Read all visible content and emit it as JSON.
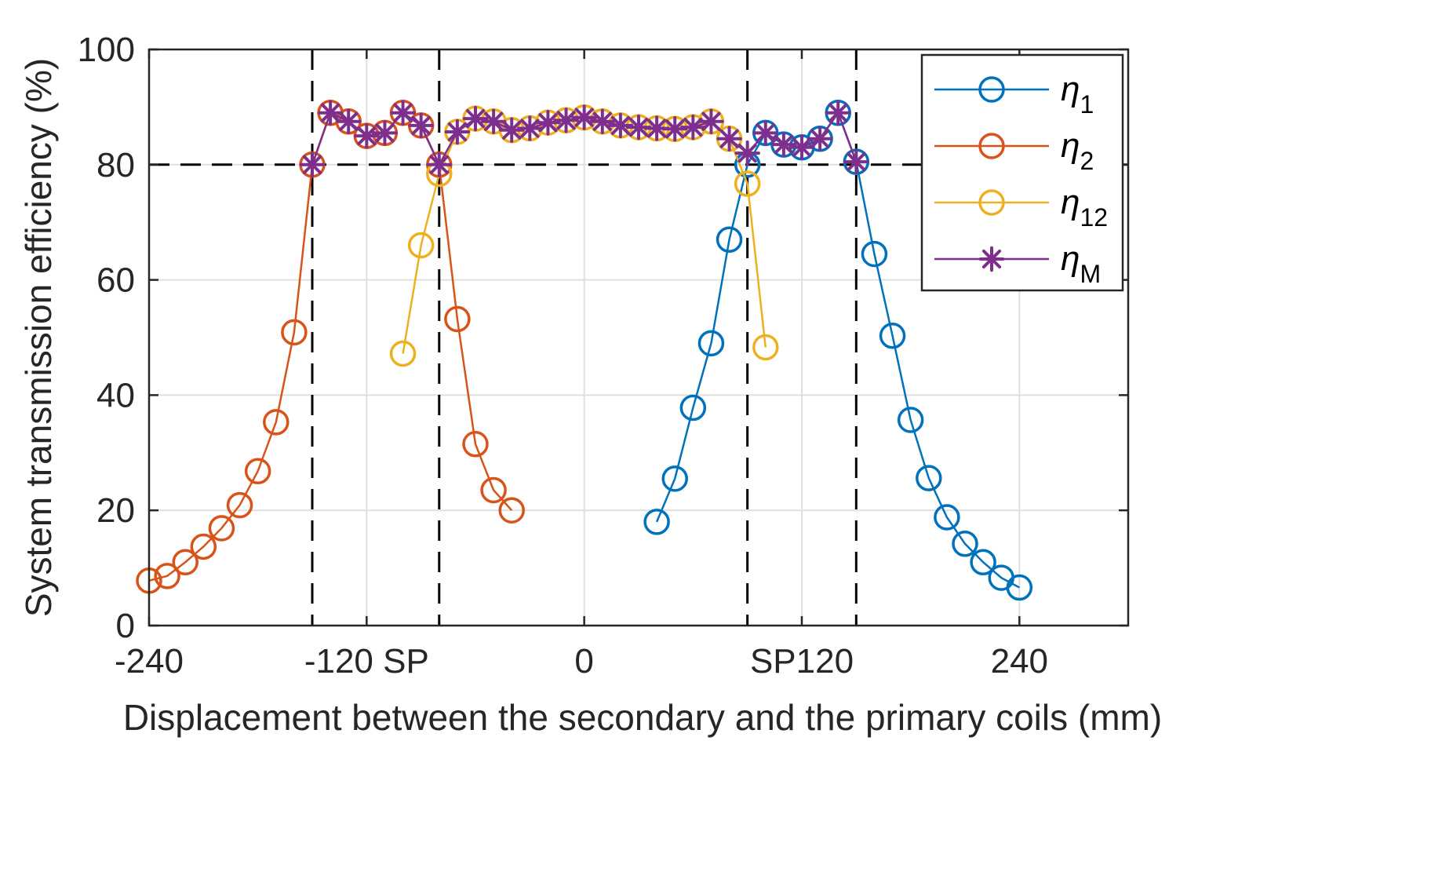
{
  "chart_data": {
    "type": "line",
    "title": "",
    "xlabel": "Displacement between the secondary and the primary coils (mm)",
    "ylabel": "System transmission efficiency (%)",
    "xlim": [
      -240,
      300
    ],
    "ylim": [
      0,
      100
    ],
    "grid": true,
    "legend_position": "top-right",
    "x_ticks": [
      {
        "value": -240,
        "label": "-240"
      },
      {
        "value": -120,
        "label": "-120 SP"
      },
      {
        "value": 0,
        "label": "0"
      },
      {
        "value": 120,
        "label": "SP120"
      },
      {
        "value": 240,
        "label": "240"
      }
    ],
    "x_gridlines": [
      -240,
      -120,
      0,
      120,
      240
    ],
    "y_ticks": [
      0,
      20,
      40,
      60,
      80,
      100
    ],
    "reference_lines": {
      "horizontal": [
        80
      ],
      "vertical": [
        -150,
        -80,
        90,
        150
      ],
      "style": "dashed",
      "color": "#000000"
    },
    "series": [
      {
        "name": "η",
        "subscript": "1",
        "color": "#0072BD",
        "marker": "circle",
        "points": [
          [
            40,
            18
          ],
          [
            50,
            25.5
          ],
          [
            60,
            37.8
          ],
          [
            70,
            49
          ],
          [
            80,
            67
          ],
          [
            90,
            80
          ],
          [
            100,
            85.5
          ],
          [
            110,
            83.5
          ],
          [
            120,
            83
          ],
          [
            130,
            84.5
          ],
          [
            140,
            89
          ],
          [
            150,
            80.5
          ],
          [
            160,
            64.5
          ],
          [
            170,
            50.3
          ],
          [
            180,
            35.7
          ],
          [
            190,
            25.6
          ],
          [
            200,
            18.8
          ],
          [
            210,
            14.2
          ],
          [
            220,
            11
          ],
          [
            230,
            8.3
          ],
          [
            240,
            6.6
          ]
        ]
      },
      {
        "name": "η",
        "subscript": "2",
        "color": "#D95319",
        "marker": "circle",
        "points": [
          [
            -240,
            7.8
          ],
          [
            -230,
            8.6
          ],
          [
            -220,
            11
          ],
          [
            -210,
            13.7
          ],
          [
            -200,
            16.9
          ],
          [
            -190,
            20.9
          ],
          [
            -180,
            26.8
          ],
          [
            -170,
            35.3
          ],
          [
            -160,
            50.9
          ],
          [
            -150,
            80
          ],
          [
            -140,
            89
          ],
          [
            -130,
            87.5
          ],
          [
            -120,
            85
          ],
          [
            -110,
            85.5
          ],
          [
            -100,
            89
          ],
          [
            -90,
            86.8
          ],
          [
            -80,
            80
          ],
          [
            -70,
            53.2
          ],
          [
            -60,
            31.5
          ],
          [
            -50,
            23.5
          ],
          [
            -40,
            20
          ]
        ]
      },
      {
        "name": "η",
        "subscript": "12",
        "color": "#EDB120",
        "marker": "circle",
        "points": [
          [
            -100,
            47.2
          ],
          [
            -90,
            66
          ],
          [
            -80,
            78.4
          ],
          [
            -70,
            85.7
          ],
          [
            -60,
            88
          ],
          [
            -50,
            87.5
          ],
          [
            -40,
            86
          ],
          [
            -30,
            86.3
          ],
          [
            -20,
            87.3
          ],
          [
            -10,
            87.7
          ],
          [
            0,
            88.2
          ],
          [
            10,
            87.5
          ],
          [
            20,
            86.8
          ],
          [
            30,
            86.5
          ],
          [
            40,
            86.3
          ],
          [
            50,
            86.2
          ],
          [
            60,
            86.5
          ],
          [
            70,
            87.5
          ],
          [
            80,
            84.5
          ],
          [
            90,
            76.7
          ],
          [
            100,
            48.3
          ]
        ]
      },
      {
        "name": "η",
        "subscript": "M",
        "color": "#7E2F8E",
        "marker": "asterisk",
        "points": [
          [
            -150,
            80
          ],
          [
            -140,
            89
          ],
          [
            -130,
            87.5
          ],
          [
            -120,
            85
          ],
          [
            -110,
            85.5
          ],
          [
            -100,
            89
          ],
          [
            -90,
            86.8
          ],
          [
            -80,
            80
          ],
          [
            -70,
            85.7
          ],
          [
            -60,
            88
          ],
          [
            -50,
            87.5
          ],
          [
            -40,
            86
          ],
          [
            -30,
            86.3
          ],
          [
            -20,
            87.3
          ],
          [
            -10,
            87.7
          ],
          [
            0,
            88.2
          ],
          [
            10,
            87.5
          ],
          [
            20,
            86.8
          ],
          [
            30,
            86.5
          ],
          [
            40,
            86.3
          ],
          [
            50,
            86.2
          ],
          [
            60,
            86.5
          ],
          [
            70,
            87.5
          ],
          [
            80,
            84.5
          ],
          [
            90,
            82
          ],
          [
            100,
            85.5
          ],
          [
            110,
            83.5
          ],
          [
            120,
            83
          ],
          [
            130,
            84.5
          ],
          [
            140,
            89
          ],
          [
            150,
            80.5
          ]
        ]
      }
    ]
  }
}
